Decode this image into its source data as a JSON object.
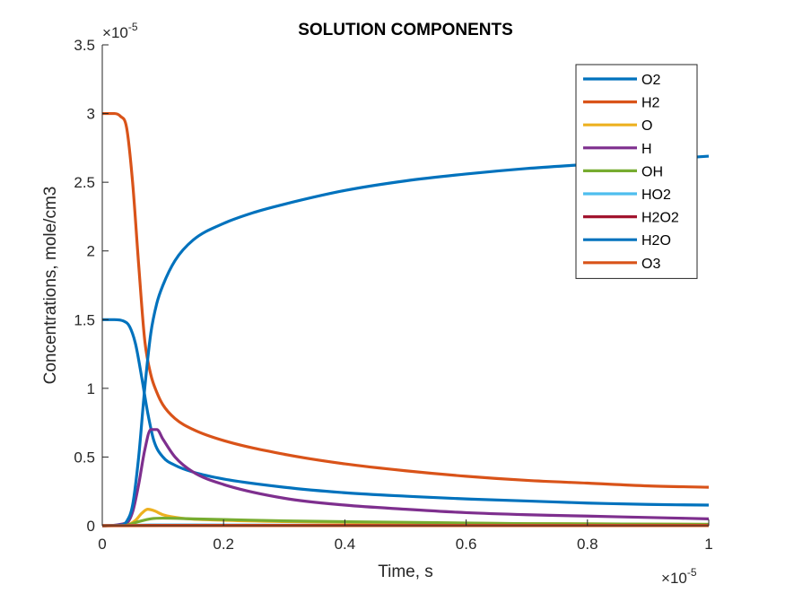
{
  "chart_data": {
    "type": "line",
    "title": "SOLUTION COMPONENTS",
    "xlabel": "Time, s",
    "ylabel": "Concentrations, mole/cm3",
    "xlim": [
      0,
      1
    ],
    "ylim": [
      0,
      3.5
    ],
    "x_multiplier": "10",
    "x_exponent": "-5",
    "y_multiplier": "10",
    "y_exponent": "-5",
    "x_ticks": [
      0,
      0.2,
      0.4,
      0.6,
      0.8,
      1
    ],
    "x_tick_labels": [
      "0",
      "0.2",
      "0.4",
      "0.6",
      "0.8",
      "1"
    ],
    "y_ticks": [
      0,
      0.5,
      1,
      1.5,
      2,
      2.5,
      3,
      3.5
    ],
    "y_tick_labels": [
      "0",
      "0.5",
      "1",
      "1.5",
      "2",
      "2.5",
      "3",
      "3.5"
    ],
    "grid": false,
    "legend_position": "top-right",
    "series": [
      {
        "name": "O2",
        "color": "#0072BD",
        "x": [
          0,
          0.02,
          0.035,
          0.045,
          0.055,
          0.065,
          0.075,
          0.085,
          0.1,
          0.12,
          0.15,
          0.2,
          0.3,
          0.4,
          0.5,
          0.6,
          0.7,
          0.8,
          0.9,
          1.0
        ],
        "y": [
          1.5,
          1.5,
          1.49,
          1.45,
          1.32,
          1.08,
          0.82,
          0.62,
          0.5,
          0.44,
          0.39,
          0.34,
          0.28,
          0.24,
          0.215,
          0.195,
          0.18,
          0.165,
          0.155,
          0.15
        ]
      },
      {
        "name": "H2",
        "color": "#D95319",
        "x": [
          0,
          0.02,
          0.03,
          0.04,
          0.05,
          0.06,
          0.07,
          0.08,
          0.09,
          0.1,
          0.12,
          0.15,
          0.2,
          0.3,
          0.4,
          0.5,
          0.6,
          0.7,
          0.8,
          0.9,
          1.0
        ],
        "y": [
          3.0,
          3.0,
          2.98,
          2.9,
          2.5,
          1.9,
          1.35,
          1.1,
          0.97,
          0.88,
          0.78,
          0.7,
          0.62,
          0.52,
          0.45,
          0.4,
          0.36,
          0.33,
          0.31,
          0.29,
          0.28
        ]
      },
      {
        "name": "O",
        "color": "#EDB120",
        "x": [
          0,
          0.04,
          0.055,
          0.065,
          0.075,
          0.085,
          0.1,
          0.13,
          0.2,
          0.3,
          0.5,
          0.7,
          1.0
        ],
        "y": [
          0,
          0.005,
          0.04,
          0.09,
          0.12,
          0.11,
          0.08,
          0.055,
          0.04,
          0.03,
          0.02,
          0.015,
          0.01
        ]
      },
      {
        "name": "H",
        "color": "#7E2F8E",
        "x": [
          0,
          0.04,
          0.05,
          0.06,
          0.07,
          0.08,
          0.09,
          0.1,
          0.12,
          0.15,
          0.2,
          0.3,
          0.4,
          0.5,
          0.6,
          0.7,
          0.8,
          0.9,
          1.0
        ],
        "y": [
          0,
          0.02,
          0.1,
          0.3,
          0.55,
          0.7,
          0.7,
          0.63,
          0.5,
          0.39,
          0.3,
          0.2,
          0.15,
          0.12,
          0.095,
          0.08,
          0.07,
          0.06,
          0.05
        ]
      },
      {
        "name": "OH",
        "color": "#77AC30",
        "x": [
          0,
          0.04,
          0.06,
          0.08,
          0.1,
          0.15,
          0.2,
          0.3,
          0.5,
          0.7,
          1.0
        ],
        "y": [
          0,
          0.005,
          0.03,
          0.05,
          0.055,
          0.05,
          0.045,
          0.035,
          0.025,
          0.015,
          0.01
        ]
      },
      {
        "name": "HO2",
        "color": "#4DBEEE",
        "x": [
          0,
          0.05,
          0.08,
          0.15,
          0.3,
          0.5,
          1.0
        ],
        "y": [
          0,
          0.002,
          0.006,
          0.006,
          0.004,
          0.003,
          0.002
        ]
      },
      {
        "name": "H2O2",
        "color": "#A2142F",
        "x": [
          0,
          0.05,
          0.1,
          0.3,
          0.5,
          1.0
        ],
        "y": [
          0,
          0.001,
          0.003,
          0.003,
          0.002,
          0.002
        ]
      },
      {
        "name": "H2O",
        "color": "#0072BD",
        "x": [
          0,
          0.03,
          0.04,
          0.05,
          0.06,
          0.07,
          0.08,
          0.09,
          0.1,
          0.12,
          0.15,
          0.2,
          0.25,
          0.3,
          0.4,
          0.5,
          0.6,
          0.7,
          0.8,
          0.9,
          1.0
        ],
        "y": [
          0,
          0.005,
          0.03,
          0.15,
          0.5,
          1.0,
          1.4,
          1.62,
          1.75,
          1.93,
          2.08,
          2.2,
          2.28,
          2.34,
          2.44,
          2.51,
          2.56,
          2.6,
          2.63,
          2.66,
          2.69
        ]
      },
      {
        "name": "O3",
        "color": "#D95319",
        "x": [
          0,
          0.2,
          0.5,
          1.0
        ],
        "y": [
          0,
          0.001,
          0.001,
          0.001
        ]
      }
    ]
  }
}
